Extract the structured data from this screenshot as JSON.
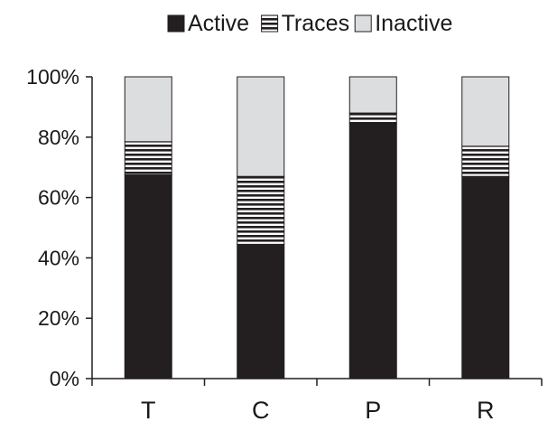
{
  "chart_data": {
    "type": "bar",
    "stacked": true,
    "percent_axis": true,
    "categories": [
      "T",
      "C",
      "P",
      "R"
    ],
    "series": [
      {
        "name": "Active",
        "values": [
          67.5,
          44.5,
          84.5,
          67.0
        ],
        "color": "#231f20",
        "pattern": "solid"
      },
      {
        "name": "Traces",
        "values": [
          11.0,
          22.5,
          3.5,
          10.0
        ],
        "color": "#231f20",
        "pattern": "horizontal-lines"
      },
      {
        "name": "Inactive",
        "values": [
          21.5,
          33.0,
          12.0,
          23.0
        ],
        "color": "#dcdddf",
        "pattern": "solid"
      }
    ],
    "ylim": [
      0,
      100
    ],
    "yticks": [
      "0%",
      "20%",
      "40%",
      "60%",
      "80%",
      "100%"
    ],
    "ytick_values": [
      0,
      20,
      40,
      60,
      80,
      100
    ],
    "grid": false,
    "legend_position": "top"
  }
}
